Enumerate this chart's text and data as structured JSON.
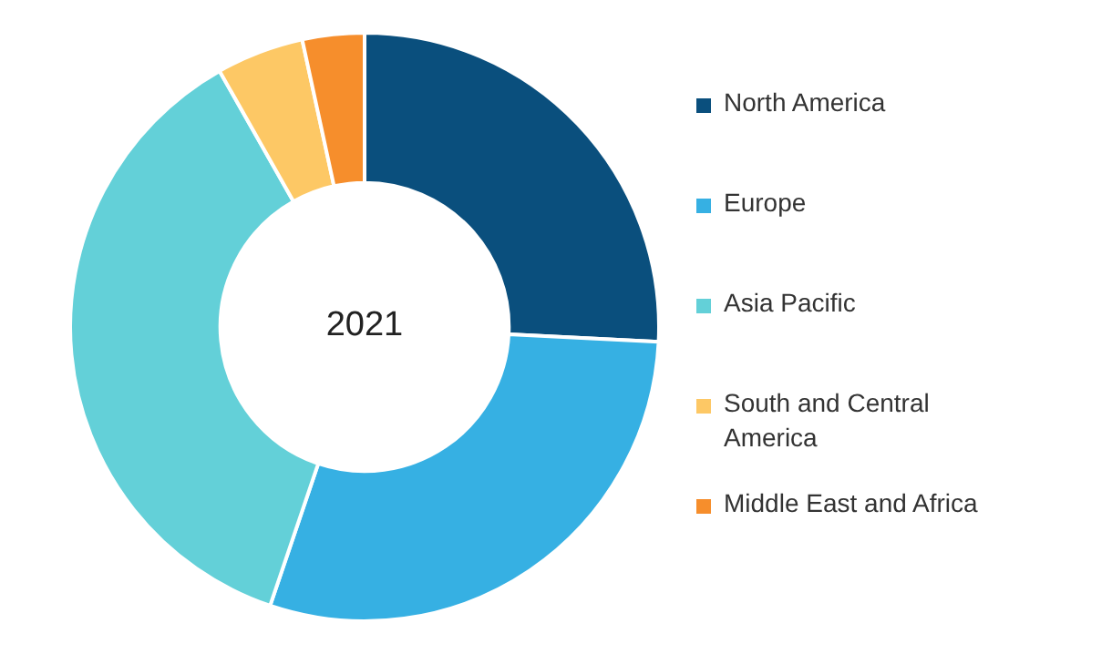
{
  "chart_data": {
    "type": "donut",
    "title": "2021",
    "categories": [
      "North America",
      "Europe",
      "Asia Pacific",
      "South and Central America",
      "Middle East and Africa"
    ],
    "values": [
      25.8,
      29.4,
      36.6,
      4.8,
      3.4
    ],
    "colors": [
      "#0a4f7d",
      "#36b0e3",
      "#63d0d8",
      "#fdc865",
      "#f68e2c"
    ],
    "legend": "right"
  }
}
